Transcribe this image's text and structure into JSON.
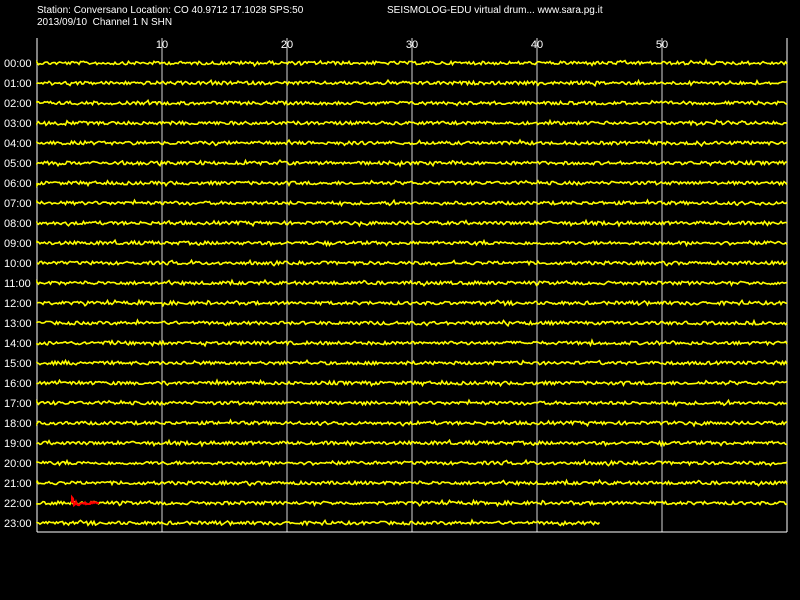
{
  "header": {
    "station_line": "Station: Conversano Location: CO 40.9712 17.1028 SPS:50",
    "brand_line": "SEISMOLOG-EDU virtual drum... www.sara.pg.it",
    "date_line": "2013/09/10  Channel 1 N SHN"
  },
  "colors": {
    "background": "#000000",
    "trace": "#ffff00",
    "event": "#ff0000",
    "grid": "#ffffff",
    "text": "#ffffff"
  },
  "chart_data": {
    "type": "line",
    "xlabel": "",
    "ylabel": "",
    "xlim": [
      0,
      60
    ],
    "x_ticks": [
      10,
      20,
      30,
      40,
      50
    ],
    "grid": true,
    "rows": [
      {
        "label": "00:00",
        "end_minute": 60
      },
      {
        "label": "01:00",
        "end_minute": 60
      },
      {
        "label": "02:00",
        "end_minute": 60
      },
      {
        "label": "03:00",
        "end_minute": 60
      },
      {
        "label": "04:00",
        "end_minute": 60
      },
      {
        "label": "05:00",
        "end_minute": 60
      },
      {
        "label": "06:00",
        "end_minute": 60
      },
      {
        "label": "07:00",
        "end_minute": 60
      },
      {
        "label": "08:00",
        "end_minute": 60
      },
      {
        "label": "09:00",
        "end_minute": 60
      },
      {
        "label": "10:00",
        "end_minute": 60
      },
      {
        "label": "11:00",
        "end_minute": 60
      },
      {
        "label": "12:00",
        "end_minute": 60
      },
      {
        "label": "13:00",
        "end_minute": 60
      },
      {
        "label": "14:00",
        "end_minute": 60
      },
      {
        "label": "15:00",
        "end_minute": 60
      },
      {
        "label": "16:00",
        "end_minute": 60
      },
      {
        "label": "17:00",
        "end_minute": 60
      },
      {
        "label": "18:00",
        "end_minute": 60
      },
      {
        "label": "19:00",
        "end_minute": 60
      },
      {
        "label": "20:00",
        "end_minute": 60
      },
      {
        "label": "21:00",
        "end_minute": 60
      },
      {
        "label": "22:00",
        "end_minute": 60
      },
      {
        "label": "23:00",
        "end_minute": 45
      }
    ],
    "events": [
      {
        "row": "22:00",
        "start_minute": 2.8,
        "end_minute": 5
      }
    ]
  }
}
